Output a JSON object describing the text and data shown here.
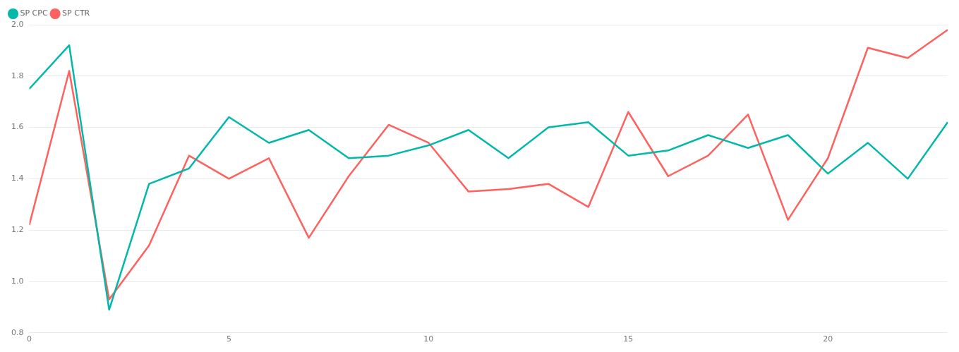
{
  "chart_data": {
    "type": "line",
    "x": [
      0,
      1,
      2,
      3,
      4,
      5,
      6,
      7,
      8,
      9,
      10,
      11,
      12,
      13,
      14,
      15,
      16,
      17,
      18,
      19,
      20,
      21,
      22,
      23
    ],
    "series": [
      {
        "name": "SP CPC",
        "color": "#01b8aa",
        "values": [
          1.75,
          1.92,
          0.89,
          1.38,
          1.44,
          1.64,
          1.54,
          1.59,
          1.48,
          1.49,
          1.53,
          1.59,
          1.48,
          1.6,
          1.62,
          1.49,
          1.51,
          1.57,
          1.52,
          1.57,
          1.42,
          1.54,
          1.4,
          1.62
        ]
      },
      {
        "name": "SP CTR",
        "color": "#fd625e",
        "values": [
          1.22,
          1.82,
          0.93,
          1.14,
          1.49,
          1.4,
          1.48,
          1.17,
          1.41,
          1.61,
          1.54,
          1.35,
          1.36,
          1.38,
          1.29,
          1.66,
          1.41,
          1.49,
          1.65,
          1.24,
          1.48,
          1.91,
          1.87,
          1.98
        ]
      }
    ],
    "xlim": [
      0,
      23
    ],
    "xticks": [
      0,
      5,
      10,
      15,
      20
    ],
    "ylim": [
      0.8,
      2.0
    ],
    "yticks": [
      0.8,
      {
        "value": 1,
        "label": "1.0"
      },
      1.2,
      1.4,
      1.6,
      1.8,
      {
        "value": 2,
        "label": "2.0"
      }
    ],
    "grid": "y",
    "legend": "top left",
    "marker": "none",
    "line_style": "solid"
  }
}
